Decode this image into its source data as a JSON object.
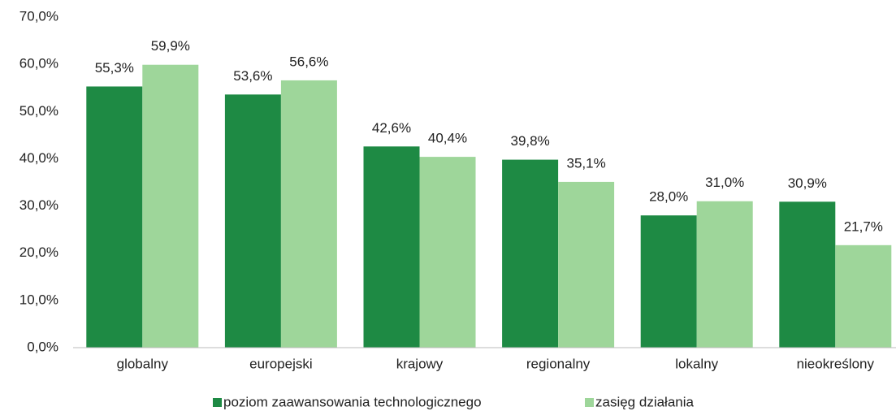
{
  "chart_data": {
    "type": "bar",
    "categories": [
      "globalny",
      "europejski",
      "krajowy",
      "regionalny",
      "lokalny",
      "nieokreślony"
    ],
    "series": [
      {
        "name": "poziom zaawansowania technologicznego",
        "color": "#1e8a44",
        "values": [
          55.3,
          53.6,
          42.6,
          39.8,
          28.0,
          30.9
        ],
        "value_labels": [
          "55,3%",
          "53,6%",
          "42,6%",
          "39,8%",
          "28,0%",
          "30,9%"
        ]
      },
      {
        "name": "zasięg działania",
        "color": "#9ed69a",
        "values": [
          59.9,
          56.6,
          40.4,
          35.1,
          31.0,
          21.7
        ],
        "value_labels": [
          "59,9%",
          "56,6%",
          "40,4%",
          "35,1%",
          "31,0%",
          "21,7%"
        ]
      }
    ],
    "ylim": [
      0,
      70
    ],
    "yticks": [
      {
        "value": 0,
        "label": "0,0%"
      },
      {
        "value": 10,
        "label": "10,0%"
      },
      {
        "value": 20,
        "label": "20,0%"
      },
      {
        "value": 30,
        "label": "30,0%"
      },
      {
        "value": 40,
        "label": "40,0%"
      },
      {
        "value": 50,
        "label": "50,0%"
      },
      {
        "value": 60,
        "label": "60,0%"
      },
      {
        "value": 70,
        "label": "70,0%"
      }
    ],
    "grid": false,
    "legend": "bottom"
  }
}
